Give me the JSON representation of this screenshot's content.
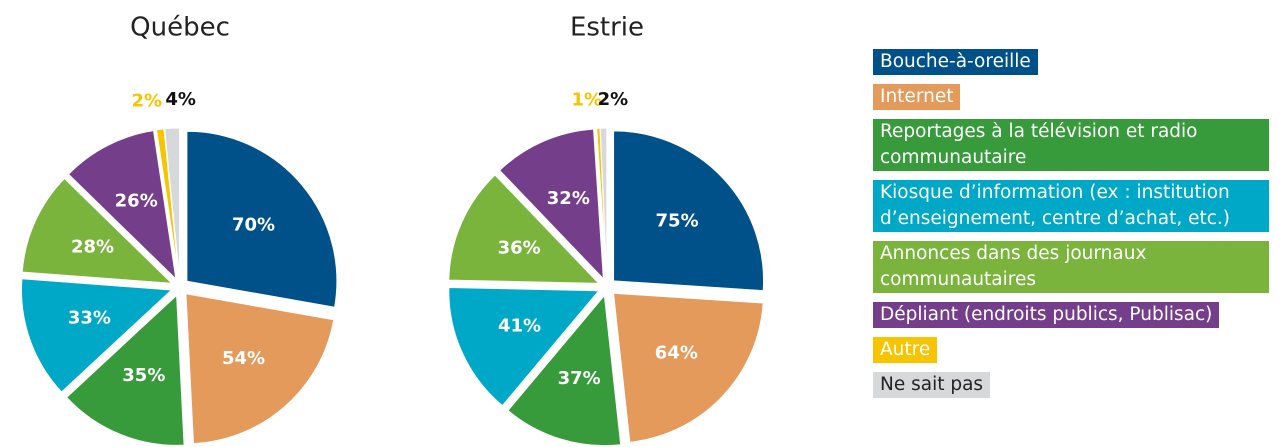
{
  "chart_data": {
    "type": "pie",
    "categories": [
      "Bouche-à-oreille",
      "Internet",
      "Reportages à la télévision et radio communautaire",
      "Kiosque d’information (ex : institution d’enseignement, centre d’achat, etc.)",
      "Annonces dans des journaux communautaires",
      "Dépliant (endroits publics, Publisac)",
      "Autre",
      "Ne sait pas"
    ],
    "colors": [
      "#00508a",
      "#e49a5b",
      "#379a3b",
      "#00a8c8",
      "#7bb43d",
      "#743e8b",
      "#f6c400",
      "#d6d8da"
    ],
    "series": [
      {
        "name": "Québec",
        "values": [
          70,
          54,
          35,
          33,
          28,
          26,
          2,
          4
        ],
        "value_labels": [
          "70%",
          "54%",
          "35%",
          "33%",
          "28%",
          "26%",
          "2%",
          "4%"
        ]
      },
      {
        "name": "Estrie",
        "values": [
          75,
          64,
          37,
          41,
          36,
          32,
          1,
          2
        ],
        "value_labels": [
          "75%",
          "64%",
          "37%",
          "41%",
          "36%",
          "32%",
          "1%",
          "2%"
        ]
      }
    ]
  }
}
